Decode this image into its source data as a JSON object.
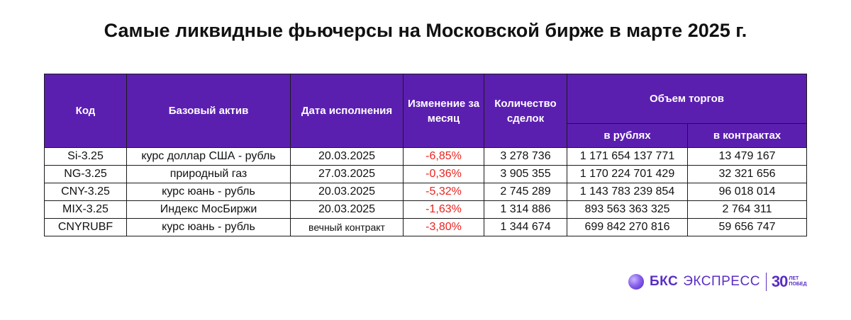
{
  "title": "Самые ликвидные фьючерсы на Московской бирже в марте 2025 г.",
  "table": {
    "headers": {
      "code": "Код",
      "asset": "Базовый актив",
      "date": "Дата исполнения",
      "change": "Изменение за месяц",
      "deals": "Количество сделок",
      "volume": "Объем торгов",
      "volume_rub": "в рублях",
      "volume_contracts": "в контрактах"
    },
    "rows": [
      {
        "code": "Si-3.25",
        "asset": "курс доллар США - рубль",
        "date": "20.03.2025",
        "change": "-6,85%",
        "deals": "3 278 736",
        "volume_rub": "1 171 654 137 771",
        "volume_contracts": "13 479 167"
      },
      {
        "code": "NG-3.25",
        "asset": "природный газ",
        "date": "27.03.2025",
        "change": "-0,36%",
        "deals": "3 905 355",
        "volume_rub": "1 170 224 701 429",
        "volume_contracts": "32 321 656"
      },
      {
        "code": "CNY-3.25",
        "asset": "курс юань - рубль",
        "date": "20.03.2025",
        "change": "-5,32%",
        "deals": "2 745 289",
        "volume_rub": "1 143 783 239 854",
        "volume_contracts": "96 018 014"
      },
      {
        "code": "MIX-3.25",
        "asset": "Индекс МосБиржи",
        "date": "20.03.2025",
        "change": "-1,63%",
        "deals": "1 314 886",
        "volume_rub": "893 563 363 325",
        "volume_contracts": "2 764 311"
      },
      {
        "code": "CNYRUBF",
        "asset": "курс юань - рубль",
        "date": "вечный контракт",
        "change": "-3,80%",
        "deals": "1 344 674",
        "volume_rub": "699 842 270 816",
        "volume_contracts": "59 656 747"
      }
    ]
  },
  "colors": {
    "header_bg": "#5b1fb0",
    "negative": "#e8241f",
    "brand": "#5a2ec4"
  },
  "logo": {
    "icon": "bks-sphere-icon",
    "brand": "БКС",
    "product": "ЭКСПРЕСС",
    "years": "30",
    "tagline_1": "ЛЕТ",
    "tagline_2": "ПОБЕД"
  }
}
